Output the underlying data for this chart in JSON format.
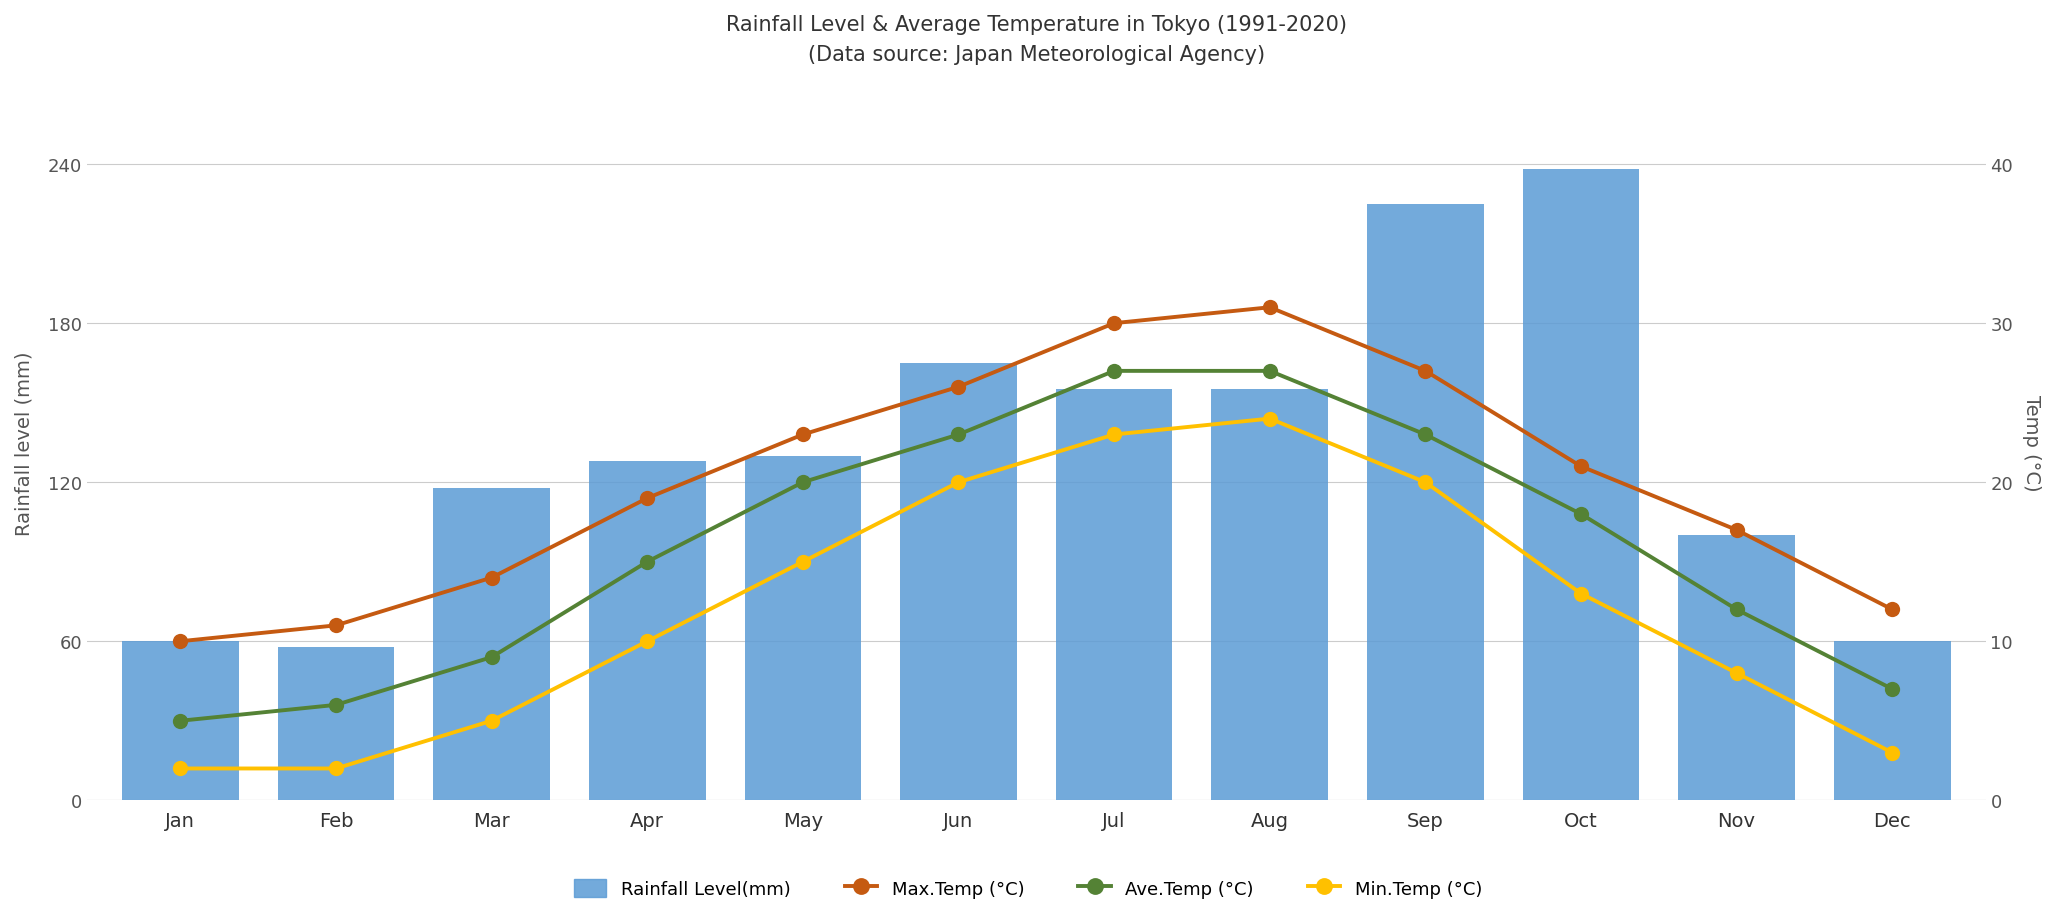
{
  "title_line1": "Rainfall Level & Average Temperature in Tokyo (1991-2020)",
  "title_line2": "(Data source: Japan Meteorological Agency)",
  "months": [
    "Jan",
    "Feb",
    "Mar",
    "Apr",
    "May",
    "Jun",
    "Jul",
    "Aug",
    "Sep",
    "Oct",
    "Nov",
    "Dec"
  ],
  "rainfall_mm": [
    60,
    58,
    118,
    128,
    130,
    165,
    155,
    155,
    225,
    238,
    100,
    60
  ],
  "max_temp_c": [
    10,
    11,
    14,
    19,
    23,
    26,
    30,
    31,
    27,
    21,
    17,
    12
  ],
  "ave_temp_c": [
    5,
    6,
    9,
    15,
    20,
    23,
    27,
    27,
    23,
    18,
    12,
    7
  ],
  "min_temp_c": [
    2,
    2,
    5,
    10,
    15,
    20,
    23,
    24,
    20,
    13,
    8,
    3
  ],
  "bar_color": "#5B9BD5",
  "max_temp_color": "#C55A11",
  "ave_temp_color": "#548235",
  "min_temp_color": "#FFC000",
  "ylabel_left": "Rainfall level (mm)",
  "ylabel_right": "Temp (°C)",
  "ylim_left": [
    0,
    270
  ],
  "ylim_right": [
    0,
    45
  ],
  "yticks_left": [
    0,
    60,
    120,
    180,
    240
  ],
  "yticks_right": [
    0,
    10,
    20,
    30,
    40
  ],
  "legend_labels": [
    "Rainfall Level(mm)",
    "Max.Temp (°C)",
    "Ave.Temp (°C)",
    "Min.Temp (°C)"
  ],
  "background_color": "#ffffff",
  "grid_color": "#cccccc",
  "figsize": [
    20.56,
    9.2
  ],
  "dpi": 100,
  "bar_width": 0.75,
  "marker_size": 11,
  "line_width": 2.8
}
